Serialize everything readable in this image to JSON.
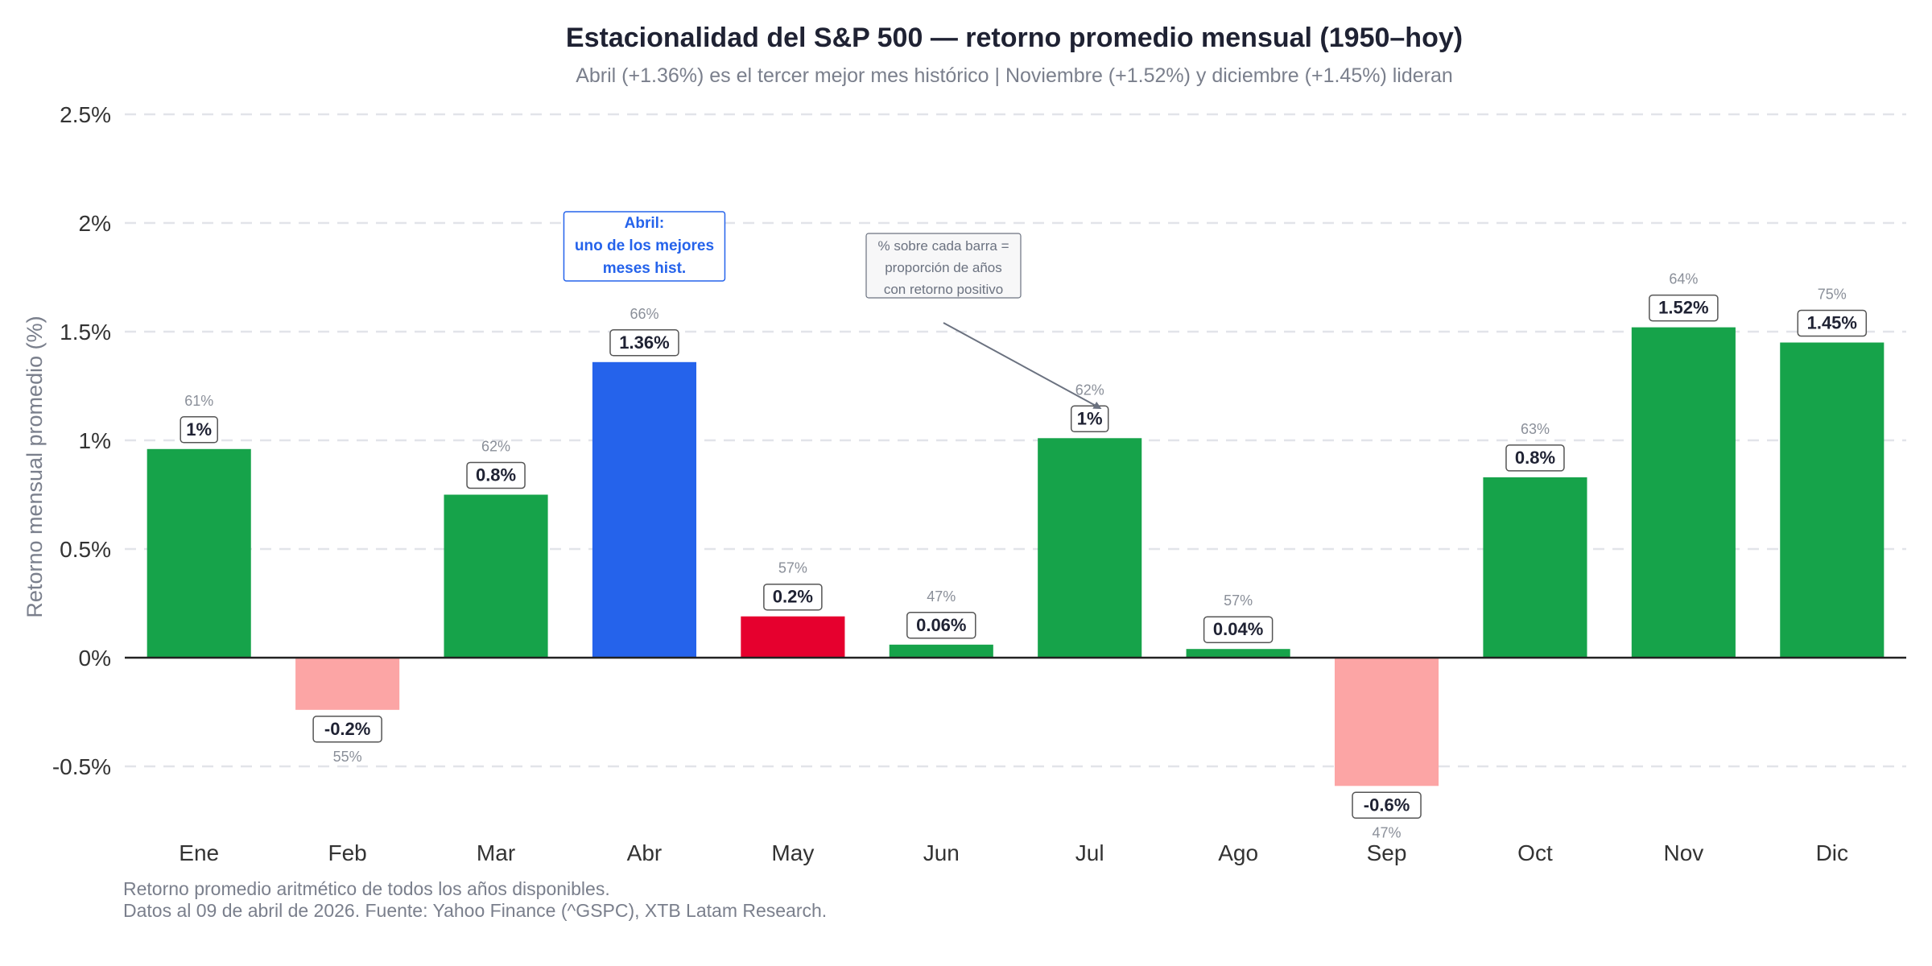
{
  "colors": {
    "positive": "#16a34a",
    "negative": "#fca5a5",
    "highlight": "#2563eb",
    "warning": "#e6002e",
    "grid": "#e2e4e9",
    "zero_line": "#222222"
  },
  "chart_data": {
    "type": "bar",
    "title": "Estacionalidad del S&P 500 — retorno promedio mensual (1950–hoy)",
    "subtitle": "Abril (+1.36%) es el tercer mejor mes histórico | Noviembre (+1.52%) y diciembre (+1.45%) lideran",
    "xlabel": "",
    "ylabel": "Retorno mensual promedio (%)",
    "ylim": [
      -0.72,
      2.5
    ],
    "yticks": [
      -0.5,
      0,
      0.5,
      1,
      1.5,
      2,
      2.5
    ],
    "ytick_labels": [
      "-0.5%",
      "0%",
      "0.5%",
      "1%",
      "1.5%",
      "2%",
      "2.5%"
    ],
    "grid": true,
    "categories": [
      "Ene",
      "Feb",
      "Mar",
      "Abr",
      "May",
      "Jun",
      "Jul",
      "Ago",
      "Sep",
      "Oct",
      "Nov",
      "Dic"
    ],
    "values": [
      0.96,
      -0.24,
      0.75,
      1.36,
      0.19,
      0.06,
      1.01,
      0.04,
      -0.59,
      0.83,
      1.52,
      1.45
    ],
    "value_labels": [
      "1%",
      "-0.2%",
      "0.8%",
      "1.36%",
      "0.2%",
      "0.06%",
      "1%",
      "0.04%",
      "-0.6%",
      "0.8%",
      "1.52%",
      "1.45%"
    ],
    "positive_pct_labels": [
      "61%",
      "55%",
      "62%",
      "66%",
      "57%",
      "47%",
      "62%",
      "57%",
      "47%",
      "63%",
      "64%",
      "75%"
    ],
    "bar_roles": [
      "positive",
      "negative",
      "positive",
      "highlight",
      "warning",
      "positive",
      "positive",
      "positive",
      "negative",
      "positive",
      "positive",
      "positive"
    ],
    "annotations": [
      {
        "kind": "highlight-box",
        "target": "Abr",
        "lines": [
          "Abril:",
          "uno de los mejores",
          "meses hist."
        ]
      },
      {
        "kind": "arrow-note",
        "target": "Jul",
        "lines": [
          "% sobre cada barra =",
          "proporción de años",
          "con retorno positivo"
        ]
      }
    ]
  },
  "footnotes": [
    "Retorno promedio aritmético de todos los años disponibles.",
    "Datos al 09 de abril de 2026. Fuente: Yahoo Finance (^GSPC), XTB Latam Research."
  ]
}
